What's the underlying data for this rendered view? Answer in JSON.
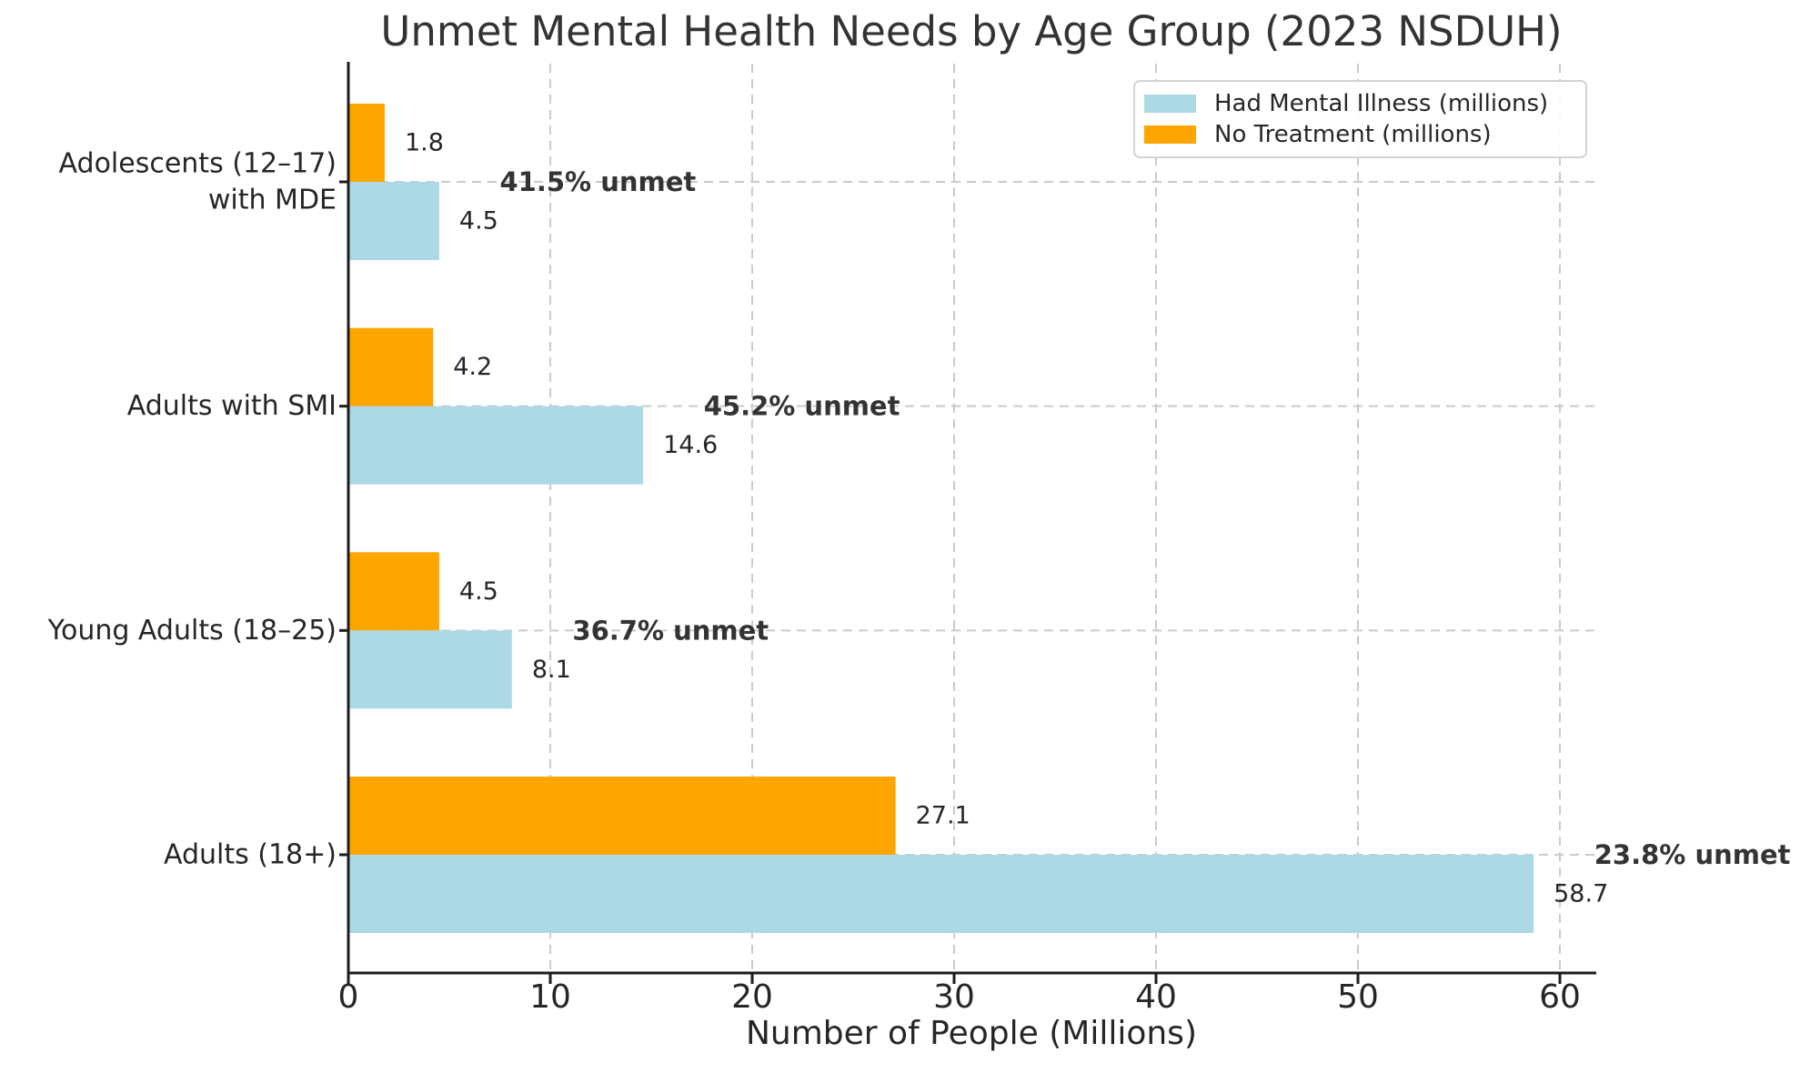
{
  "chart_data": {
    "type": "bar",
    "orientation": "horizontal",
    "title": "Unmet Mental Health Needs by Age Group (2023 NSDUH)",
    "xlabel": "Number of People (Millions)",
    "ylabel": "",
    "x_ticks": [
      0,
      10,
      20,
      30,
      40,
      50,
      60
    ],
    "xlim": [
      0,
      61.7
    ],
    "grid": "dashed-both-axes",
    "legend_position": "upper right",
    "categories": [
      "Adolescents (12–17)\nwith MDE",
      "Adults with SMI",
      "Young Adults (18–25)",
      "Adults (18+)"
    ],
    "series": [
      {
        "name": "Had Mental Illness (millions)",
        "color": "#ADD8E6",
        "values": [
          4.5,
          14.6,
          8.1,
          58.7
        ]
      },
      {
        "name": "No Treatment (millions)",
        "color": "#FFA500",
        "values": [
          1.8,
          4.2,
          4.5,
          27.1
        ]
      }
    ],
    "bar_value_labels": {
      "had_mental_illness": [
        "4.5",
        "14.6",
        "8.1",
        "58.7"
      ],
      "no_treatment": [
        "1.8",
        "4.2",
        "4.5",
        "27.1"
      ]
    },
    "annotations": [
      {
        "category": "Adolescents (12–17) with MDE",
        "label": "41.5% unmet"
      },
      {
        "category": "Adults with SMI",
        "label": "45.2% unmet"
      },
      {
        "category": "Young Adults (18–25)",
        "label": "36.7% unmet"
      },
      {
        "category": "Adults (18+)",
        "label": "23.8% unmet"
      }
    ],
    "colors": {
      "grid": "#cbcbcb",
      "text": "#262626",
      "spine": "#1c1c1c",
      "background": "#ffffff"
    }
  }
}
